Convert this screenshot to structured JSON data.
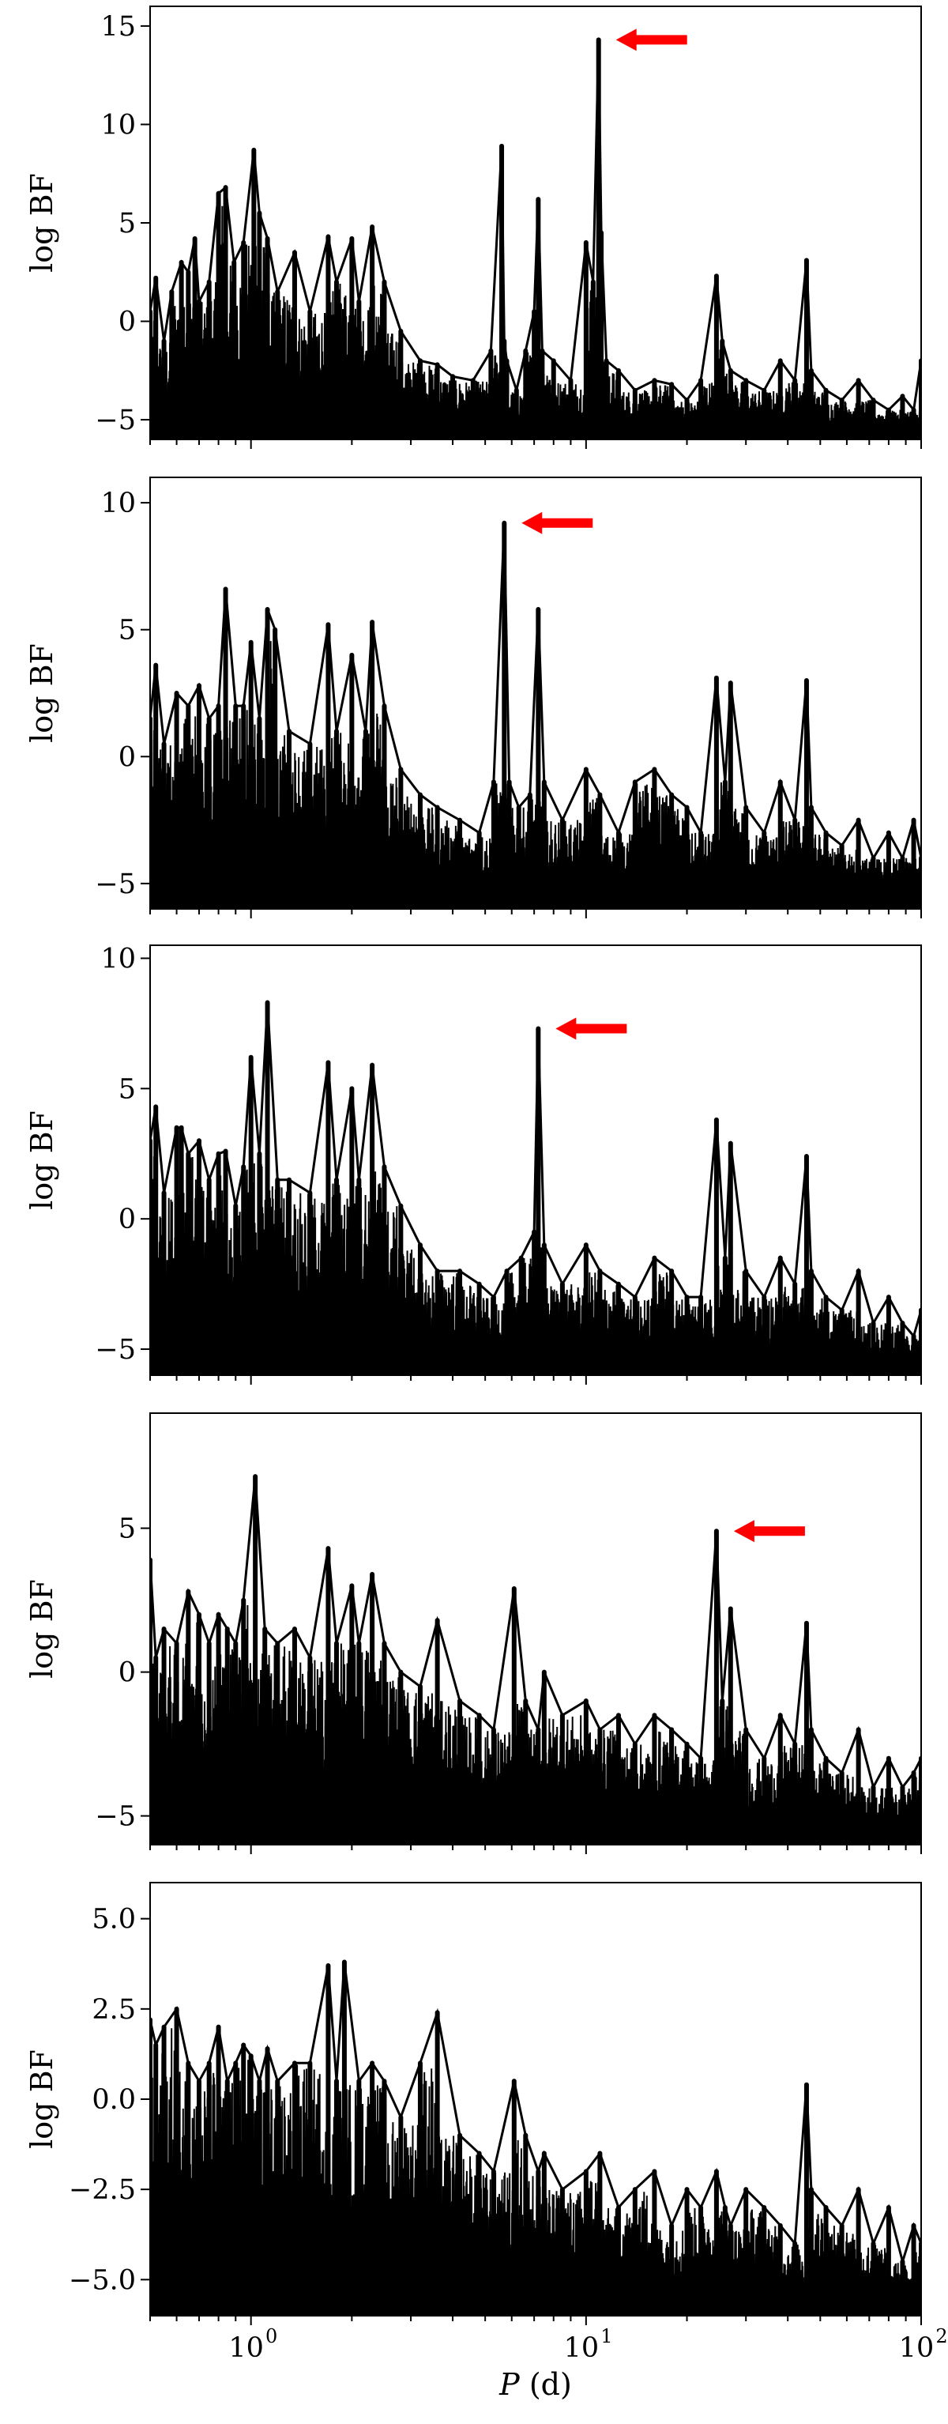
{
  "colors": {
    "line": "#000000",
    "arrow": "#ff0000",
    "frame": "#000000",
    "background": "#ffffff"
  },
  "chart_data": [
    {
      "type": "line",
      "panel": 1,
      "xlabel": "",
      "ylabel": "log BF",
      "xscale": "log",
      "xlim": [
        0.5,
        100
      ],
      "ylim": [
        -6,
        16
      ],
      "yticks": [
        -5,
        0,
        5,
        10,
        15
      ],
      "ytick_labels": [
        "−5",
        "0",
        "5",
        "10",
        "15"
      ],
      "xtick_labels_visible": false,
      "grid": false,
      "series": [
        {
          "x": [
            0.5,
            0.52,
            0.55,
            0.58,
            0.62,
            0.65,
            0.68,
            0.7,
            0.75,
            0.8,
            0.84,
            0.89,
            0.95,
            1.02,
            1.06,
            1.12,
            1.2,
            1.35,
            1.5,
            1.7,
            1.8,
            2.0,
            2.1,
            2.3,
            2.5,
            2.8,
            3.2,
            3.6,
            4.0,
            4.6,
            5.2,
            5.6,
            5.7,
            5.8,
            6.2,
            6.6,
            7.0,
            7.2,
            7.4,
            8.0,
            9.0,
            10.0,
            10.5,
            10.9,
            11.1,
            11.5,
            12.5,
            14,
            16,
            18,
            20,
            22,
            24.5,
            25.5,
            27,
            30,
            34,
            38,
            42,
            45.5,
            47,
            52,
            58,
            65,
            72,
            80,
            88,
            95,
            100
          ],
          "y": [
            0.5,
            2.2,
            -1.0,
            1.5,
            3.0,
            2.5,
            4.2,
            1.0,
            2.0,
            6.5,
            6.8,
            3.0,
            4.0,
            8.7,
            5.5,
            4.2,
            1.5,
            3.5,
            0.5,
            4.3,
            2.0,
            4.2,
            1.0,
            4.8,
            2.0,
            -0.5,
            -2.0,
            -2.2,
            -2.8,
            -3.0,
            -1.5,
            8.9,
            -1.0,
            -2.0,
            -3.5,
            -1.5,
            0.5,
            6.2,
            -1.5,
            -2.0,
            -3.0,
            4.0,
            2.0,
            14.3,
            4.5,
            -2.0,
            -2.5,
            -3.5,
            -3.0,
            -3.2,
            -4.0,
            -3.0,
            2.3,
            -1.0,
            -2.5,
            -3.0,
            -3.5,
            -2.0,
            -3.0,
            3.1,
            -2.5,
            -3.5,
            -4.0,
            -3.0,
            -4.0,
            -4.5,
            -3.8,
            -4.5,
            -2.0
          ],
          "noise_floor": -5.7
        }
      ],
      "annotations": [
        {
          "type": "arrow",
          "x": 10.9,
          "y": 14.3,
          "direction": "left"
        }
      ]
    },
    {
      "type": "line",
      "panel": 2,
      "xlabel": "",
      "ylabel": "log BF",
      "xscale": "log",
      "xlim": [
        0.5,
        100
      ],
      "ylim": [
        -6,
        11
      ],
      "yticks": [
        -5,
        0,
        5,
        10
      ],
      "ytick_labels": [
        "−5",
        "0",
        "5",
        "10"
      ],
      "xtick_labels_visible": false,
      "grid": false,
      "series": [
        {
          "x": [
            0.5,
            0.52,
            0.55,
            0.6,
            0.65,
            0.7,
            0.75,
            0.8,
            0.84,
            0.9,
            0.95,
            1.0,
            1.06,
            1.12,
            1.18,
            1.3,
            1.5,
            1.7,
            1.8,
            2.0,
            2.2,
            2.3,
            2.5,
            2.8,
            3.2,
            3.6,
            4.2,
            4.8,
            5.3,
            5.7,
            5.9,
            6.3,
            6.8,
            7.2,
            7.5,
            8.5,
            10,
            11,
            12.5,
            14,
            16,
            18,
            20,
            22,
            24.5,
            26,
            27,
            30,
            34,
            38,
            42,
            45.5,
            47,
            52,
            58,
            65,
            72,
            80,
            88,
            95,
            100
          ],
          "y": [
            1.5,
            3.6,
            0.5,
            2.5,
            2.0,
            2.8,
            1.5,
            2.0,
            6.6,
            2.0,
            2.0,
            4.5,
            1.5,
            5.8,
            5.0,
            1.0,
            0.5,
            5.2,
            1.0,
            4.0,
            1.0,
            5.3,
            2.0,
            -0.5,
            -1.5,
            -2.0,
            -2.5,
            -3.0,
            -1.0,
            9.2,
            -1.0,
            -2.0,
            -1.5,
            5.8,
            -1.0,
            -2.5,
            -0.5,
            -1.5,
            -3.0,
            -1.0,
            -0.5,
            -1.5,
            -2.0,
            -3.0,
            3.1,
            -1.0,
            2.9,
            -2.0,
            -3.0,
            -1.0,
            -2.5,
            3.0,
            -2.0,
            -3.0,
            -3.5,
            -2.5,
            -4.0,
            -3.0,
            -4.0,
            -2.5,
            -4.0
          ],
          "noise_floor": -5.8
        }
      ],
      "annotations": [
        {
          "type": "arrow",
          "x": 5.7,
          "y": 9.2,
          "direction": "left"
        }
      ]
    },
    {
      "type": "line",
      "panel": 3,
      "xlabel": "",
      "ylabel": "log BF",
      "xscale": "log",
      "xlim": [
        0.5,
        100
      ],
      "ylim": [
        -6,
        10.5
      ],
      "yticks": [
        -5,
        0,
        5,
        10
      ],
      "ytick_labels": [
        "−5",
        "0",
        "5",
        "10"
      ],
      "xtick_labels_visible": false,
      "grid": false,
      "series": [
        {
          "x": [
            0.5,
            0.52,
            0.55,
            0.6,
            0.62,
            0.65,
            0.7,
            0.75,
            0.8,
            0.84,
            0.9,
            0.95,
            1.0,
            1.06,
            1.12,
            1.2,
            1.3,
            1.5,
            1.7,
            1.8,
            2.0,
            2.1,
            2.3,
            2.5,
            2.8,
            3.2,
            3.6,
            4.2,
            4.8,
            5.3,
            5.8,
            6.4,
            7.0,
            7.2,
            7.5,
            8.5,
            10,
            11,
            12.5,
            14,
            16,
            18,
            20,
            22,
            24.5,
            26,
            27,
            30,
            34,
            38,
            42,
            45.5,
            47,
            52,
            58,
            65,
            72,
            80,
            88,
            95,
            100
          ],
          "y": [
            3.0,
            4.3,
            1.0,
            3.5,
            3.5,
            2.5,
            3.0,
            1.5,
            2.5,
            2.6,
            0.5,
            2.0,
            6.2,
            2.5,
            8.3,
            1.5,
            1.5,
            1.0,
            6.0,
            1.5,
            5.0,
            1.5,
            5.9,
            2.0,
            0.5,
            -1.0,
            -2.0,
            -2.0,
            -2.5,
            -3.0,
            -2.0,
            -1.5,
            -0.5,
            7.3,
            -1.0,
            -2.5,
            -1.0,
            -2.0,
            -2.5,
            -3.0,
            -1.5,
            -2.0,
            -3.0,
            -3.0,
            3.8,
            -1.5,
            2.9,
            -2.0,
            -3.0,
            -1.5,
            -2.5,
            2.4,
            -2.0,
            -3.0,
            -3.5,
            -2.0,
            -4.0,
            -3.0,
            -4.0,
            -4.5,
            -3.5
          ],
          "noise_floor": -5.9
        }
      ],
      "annotations": [
        {
          "type": "arrow",
          "x": 7.2,
          "y": 7.3,
          "direction": "left"
        }
      ]
    },
    {
      "type": "line",
      "panel": 4,
      "xlabel": "",
      "ylabel": "log BF",
      "xscale": "log",
      "xlim": [
        0.5,
        100
      ],
      "ylim": [
        -6,
        9
      ],
      "yticks": [
        -5,
        0,
        5
      ],
      "ytick_labels": [
        "−5",
        "0",
        "5"
      ],
      "xtick_labels_visible": false,
      "grid": false,
      "series": [
        {
          "x": [
            0.5,
            0.52,
            0.55,
            0.6,
            0.65,
            0.7,
            0.75,
            0.8,
            0.85,
            0.9,
            0.95,
            1.03,
            1.1,
            1.2,
            1.35,
            1.5,
            1.7,
            1.8,
            2.0,
            2.1,
            2.3,
            2.5,
            2.8,
            3.2,
            3.6,
            4.2,
            4.8,
            5.3,
            6.1,
            6.6,
            7.2,
            7.5,
            8.5,
            10,
            11,
            12.5,
            14,
            16,
            18,
            20,
            22,
            24.5,
            25.5,
            27,
            30,
            34,
            38,
            42,
            45.5,
            47,
            52,
            58,
            65,
            72,
            80,
            88,
            95,
            100
          ],
          "y": [
            3.9,
            0.5,
            1.5,
            1.0,
            2.8,
            2.0,
            1.0,
            2.0,
            1.5,
            1.0,
            2.5,
            6.8,
            1.5,
            1.0,
            1.5,
            0.5,
            4.3,
            1.0,
            3.0,
            1.0,
            3.4,
            1.0,
            0.0,
            -0.5,
            1.8,
            -1.0,
            -1.5,
            -2.0,
            2.9,
            -1.0,
            -2.0,
            0.0,
            -1.5,
            -1.0,
            -2.0,
            -1.5,
            -2.5,
            -1.5,
            -2.0,
            -2.5,
            -3.0,
            4.9,
            -1.0,
            2.2,
            -2.0,
            -3.0,
            -1.5,
            -2.5,
            1.7,
            -2.0,
            -3.0,
            -3.5,
            -2.0,
            -4.0,
            -3.0,
            -4.0,
            -3.5,
            -3.0
          ],
          "noise_floor": -5.8
        }
      ],
      "annotations": [
        {
          "type": "arrow",
          "x": 24.5,
          "y": 4.9,
          "direction": "left"
        }
      ]
    },
    {
      "type": "line",
      "panel": 5,
      "xlabel": "P (d)",
      "ylabel": "log BF",
      "xscale": "log",
      "xlim": [
        0.5,
        100
      ],
      "ylim": [
        -6,
        6
      ],
      "yticks": [
        -5.0,
        -2.5,
        0.0,
        2.5,
        5.0
      ],
      "ytick_labels": [
        "−5.0",
        "−2.5",
        "0.0",
        "2.5",
        "5.0"
      ],
      "xticks": [
        1,
        10,
        100
      ],
      "xtick_labels": [
        "10",
        "10",
        "10"
      ],
      "xtick_exponents": [
        "0",
        "1",
        "2"
      ],
      "xtick_labels_visible": true,
      "grid": false,
      "series": [
        {
          "x": [
            0.5,
            0.52,
            0.55,
            0.6,
            0.65,
            0.7,
            0.75,
            0.8,
            0.85,
            0.9,
            0.95,
            1.0,
            1.06,
            1.12,
            1.2,
            1.35,
            1.5,
            1.7,
            1.8,
            1.9,
            2.1,
            2.3,
            2.5,
            2.8,
            3.2,
            3.6,
            4.2,
            4.8,
            5.3,
            6.1,
            6.6,
            7.2,
            7.5,
            8.5,
            10,
            11,
            12.5,
            14,
            16,
            18,
            20,
            22,
            24.5,
            26,
            27,
            30,
            34,
            38,
            42,
            45.5,
            47,
            52,
            58,
            65,
            72,
            80,
            88,
            95,
            100
          ],
          "y": [
            2.2,
            1.5,
            2.0,
            2.5,
            1.0,
            0.5,
            1.0,
            2.0,
            0.5,
            1.0,
            1.5,
            1.2,
            0.5,
            1.4,
            0.5,
            1.0,
            1.0,
            3.7,
            0.5,
            3.8,
            0.5,
            1.0,
            0.5,
            -0.5,
            1.0,
            2.4,
            -1.0,
            -1.5,
            -2.0,
            0.5,
            -1.0,
            -2.0,
            -1.5,
            -2.5,
            -2.0,
            -1.5,
            -3.0,
            -2.5,
            -2.0,
            -3.5,
            -2.5,
            -3.0,
            -2.0,
            -3.0,
            -3.5,
            -2.5,
            -3.0,
            -3.5,
            -4.0,
            0.4,
            -2.5,
            -3.0,
            -3.5,
            -2.5,
            -4.0,
            -3.0,
            -4.5,
            -3.5,
            -4.0
          ],
          "noise_floor": -5.8
        }
      ],
      "annotations": []
    }
  ]
}
